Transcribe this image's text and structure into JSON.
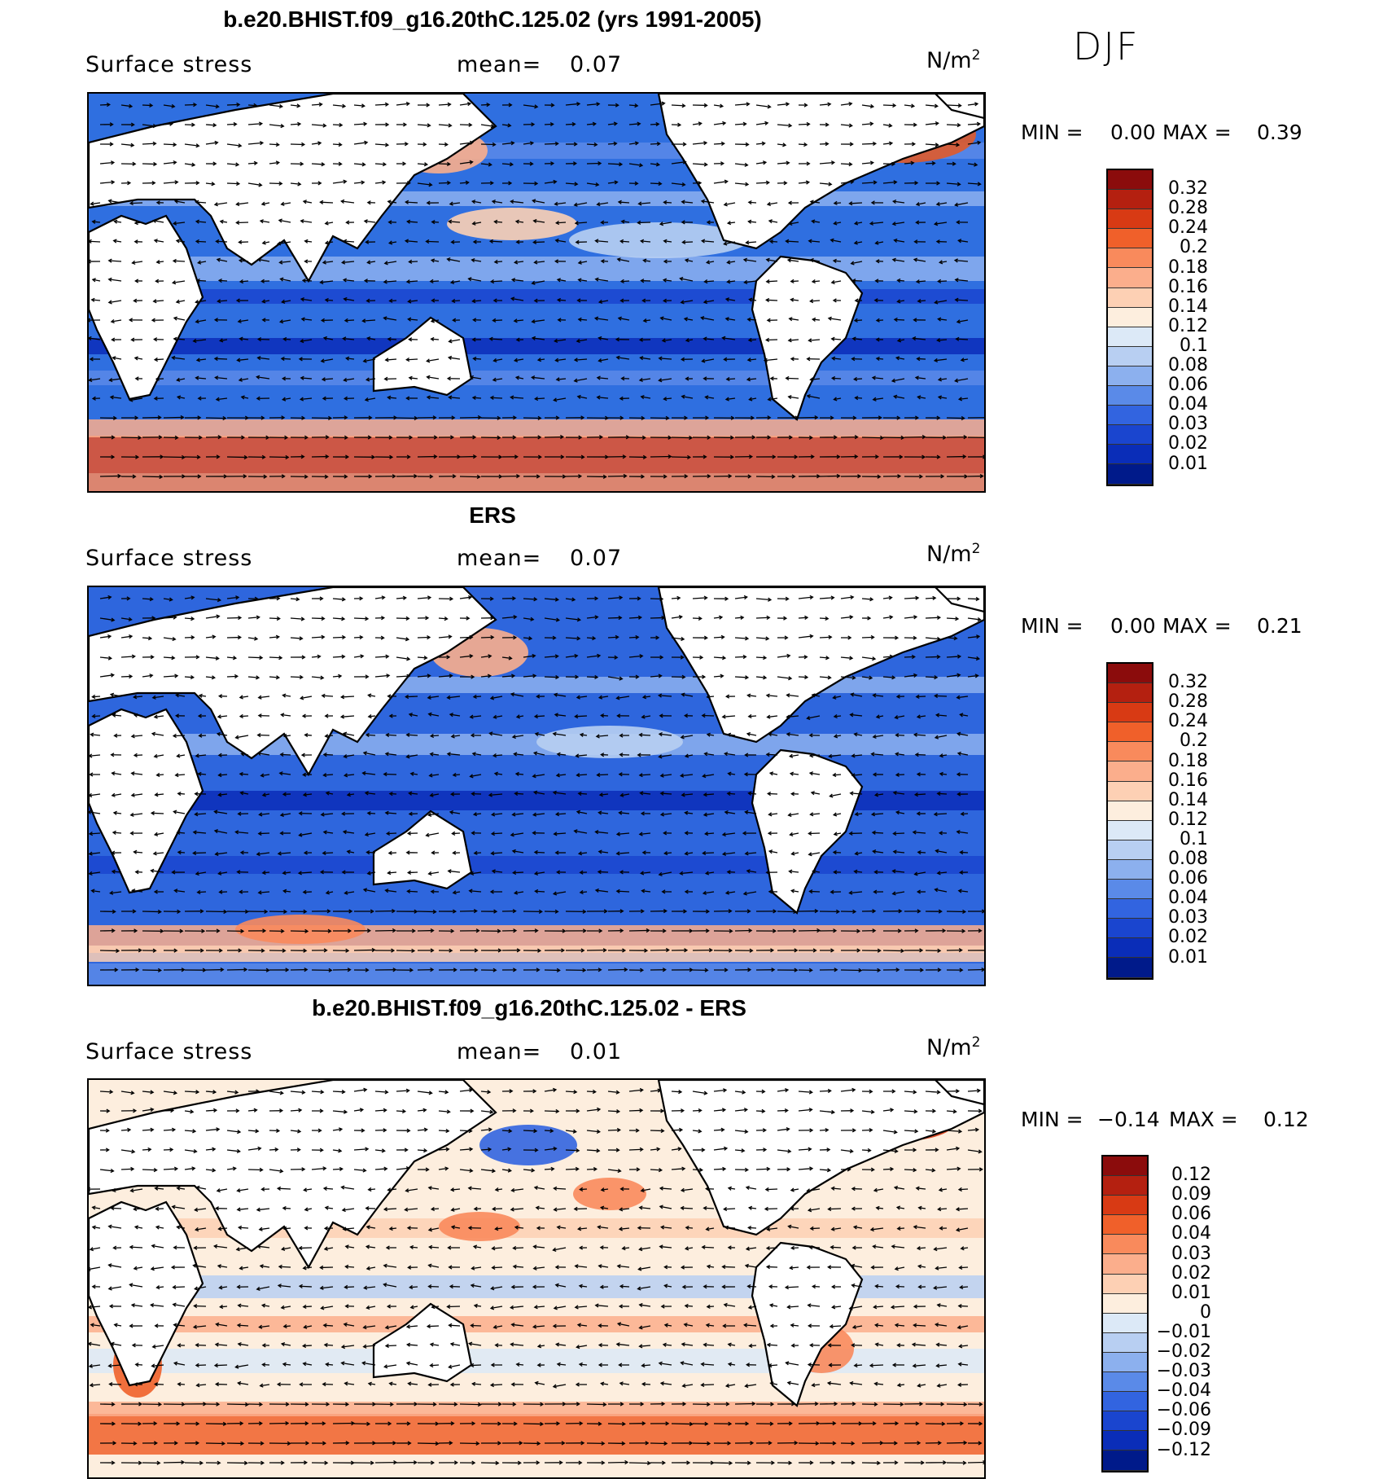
{
  "season": "DJF",
  "panels": [
    {
      "title": "b.e20.BHIST.f09_g16.20thC.125.02 (yrs 1991-2005)",
      "variable": "Surface stress",
      "mean_label": "mean=",
      "mean_value": "0.07",
      "units": "N/m",
      "units_exp": "2",
      "min_label": "MIN =",
      "min_value": "0.00",
      "max_label": "MAX =",
      "max_value": "0.39",
      "colorbar": {
        "labels": [
          "0.32",
          "0.28",
          "0.24",
          "0.2",
          "0.18",
          "0.16",
          "0.14",
          "0.12",
          "0.1",
          "0.08",
          "0.06",
          "0.04",
          "0.03",
          "0.02",
          "0.01"
        ],
        "colors": [
          "#8b0c0c",
          "#b42010",
          "#d83a14",
          "#f0602a",
          "#f98a5c",
          "#fbae8c",
          "#fdd0b4",
          "#fdeede",
          "#dce9f7",
          "#b8cff2",
          "#8cb0ee",
          "#5a8ae8",
          "#3264e0",
          "#1a45cf",
          "#0a2db8",
          "#001a8a"
        ]
      }
    },
    {
      "title": "ERS",
      "variable": "Surface stress",
      "mean_label": "mean=",
      "mean_value": "0.07",
      "units": "N/m",
      "units_exp": "2",
      "min_label": "MIN =",
      "min_value": "0.00",
      "max_label": "MAX =",
      "max_value": "0.21",
      "colorbar": {
        "labels": [
          "0.32",
          "0.28",
          "0.24",
          "0.2",
          "0.18",
          "0.16",
          "0.14",
          "0.12",
          "0.1",
          "0.08",
          "0.06",
          "0.04",
          "0.03",
          "0.02",
          "0.01"
        ],
        "colors": [
          "#8b0c0c",
          "#b42010",
          "#d83a14",
          "#f0602a",
          "#f98a5c",
          "#fbae8c",
          "#fdd0b4",
          "#fdeede",
          "#dce9f7",
          "#b8cff2",
          "#8cb0ee",
          "#5a8ae8",
          "#3264e0",
          "#1a45cf",
          "#0a2db8",
          "#001a8a"
        ]
      }
    },
    {
      "title": "b.e20.BHIST.f09_g16.20thC.125.02 - ERS",
      "variable": "Surface stress",
      "mean_label": "mean=",
      "mean_value": "0.01",
      "units": "N/m",
      "units_exp": "2",
      "min_label": "MIN =",
      "min_value": "−0.14",
      "max_label": "MAX =",
      "max_value": "0.12",
      "colorbar": {
        "labels": [
          "0.12",
          "0.09",
          "0.06",
          "0.04",
          "0.03",
          "0.02",
          "0.01",
          "0",
          "−0.01",
          "−0.02",
          "−0.03",
          "−0.04",
          "−0.06",
          "−0.09",
          "−0.12"
        ],
        "colors": [
          "#8b0c0c",
          "#b42010",
          "#d83a14",
          "#f0602a",
          "#f98a5c",
          "#fbae8c",
          "#fdd0b4",
          "#fdeede",
          "#dce9f7",
          "#b8cff2",
          "#8cb0ee",
          "#5a8ae8",
          "#3264e0",
          "#1a45cf",
          "#0a2db8",
          "#001a8a"
        ]
      }
    }
  ],
  "chart_data": [
    {
      "type": "heatmap",
      "title": "b.e20.BHIST.f09_g16.20thC.125.02 (yrs 1991-2005)",
      "subtitle": "Surface stress",
      "mean": 0.07,
      "min": 0.0,
      "max": 0.39,
      "contour_levels": [
        0.01,
        0.02,
        0.03,
        0.04,
        0.06,
        0.08,
        0.1,
        0.12,
        0.14,
        0.16,
        0.18,
        0.2,
        0.24,
        0.28,
        0.32
      ]
    },
    {
      "type": "heatmap",
      "title": "ERS",
      "subtitle": "Surface stress",
      "mean": 0.07,
      "min": 0.0,
      "max": 0.21,
      "contour_levels": [
        0.01,
        0.02,
        0.03,
        0.04,
        0.06,
        0.08,
        0.1,
        0.12,
        0.14,
        0.16,
        0.18,
        0.2,
        0.24,
        0.28,
        0.32
      ]
    },
    {
      "type": "heatmap",
      "title": "b.e20.BHIST.f09_g16.20thC.125.02 - ERS",
      "subtitle": "Surface stress",
      "mean": 0.01,
      "min": -0.14,
      "max": 0.12,
      "contour_levels": [
        -0.12,
        -0.09,
        -0.06,
        -0.04,
        -0.03,
        -0.02,
        -0.01,
        0,
        0.01,
        0.02,
        0.03,
        0.04,
        0.06,
        0.09,
        0.12
      ]
    }
  ]
}
